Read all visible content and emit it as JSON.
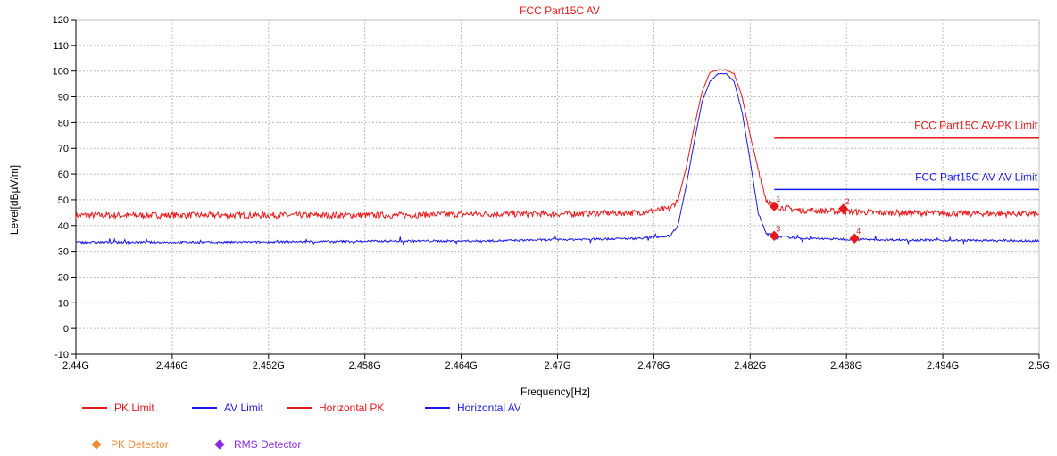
{
  "chart_data": {
    "type": "line",
    "title": "FCC Part15C AV",
    "xlabel": "Frequency[Hz]",
    "ylabel": "Level[dBµV/m]",
    "xlim": [
      2.44,
      2.5
    ],
    "ylim": [
      -10,
      120
    ],
    "x_ticks": [
      {
        "value": 2.44,
        "label": "2.44G"
      },
      {
        "value": 2.446,
        "label": "2.446G"
      },
      {
        "value": 2.452,
        "label": "2.452G"
      },
      {
        "value": 2.458,
        "label": "2.458G"
      },
      {
        "value": 2.464,
        "label": "2.464G"
      },
      {
        "value": 2.47,
        "label": "2.47G"
      },
      {
        "value": 2.476,
        "label": "2.476G"
      },
      {
        "value": 2.482,
        "label": "2.482G"
      },
      {
        "value": 2.488,
        "label": "2.488G"
      },
      {
        "value": 2.494,
        "label": "2.494G"
      },
      {
        "value": 2.5,
        "label": "2.5G"
      }
    ],
    "y_ticks": [
      -10,
      0,
      10,
      20,
      30,
      40,
      50,
      60,
      70,
      80,
      90,
      100,
      110,
      120
    ],
    "grid": true,
    "series": [
      {
        "name": "PK Limit",
        "color": "#e8191b",
        "x": [
          2.4835,
          2.5
        ],
        "y": [
          74,
          74
        ]
      },
      {
        "name": "AV Limit",
        "color": "#1a1aee",
        "x": [
          2.4835,
          2.5
        ],
        "y": [
          54,
          54
        ]
      },
      {
        "name": "Horizontal PK",
        "color": "#e8191b",
        "x": [
          2.44,
          2.45,
          2.46,
          2.465,
          2.47,
          2.475,
          2.477,
          2.4775,
          2.478,
          2.4785,
          2.479,
          2.4795,
          2.48,
          2.4805,
          2.481,
          2.4815,
          2.482,
          2.4825,
          2.483,
          2.4835,
          2.485,
          2.49,
          2.5
        ],
        "y": [
          44,
          44,
          44,
          44.5,
          44.5,
          45,
          46.5,
          50,
          62,
          78,
          92,
          99.5,
          100.5,
          100.5,
          99,
          90,
          75,
          62,
          50,
          47.5,
          46,
          45,
          44.5
        ]
      },
      {
        "name": "Horizontal AV",
        "color": "#1a1aee",
        "x": [
          2.44,
          2.45,
          2.46,
          2.465,
          2.47,
          2.475,
          2.477,
          2.4775,
          2.478,
          2.4785,
          2.479,
          2.4795,
          2.48,
          2.4805,
          2.481,
          2.4815,
          2.482,
          2.4825,
          2.483,
          2.4835,
          2.485,
          2.49,
          2.5
        ],
        "y": [
          33.5,
          33.5,
          34,
          34,
          34.5,
          35,
          36,
          40,
          55,
          72,
          88,
          96,
          99,
          99,
          96,
          84,
          65,
          45,
          37,
          36,
          35,
          34.5,
          34
        ]
      }
    ],
    "markers": [
      {
        "label": "1",
        "x": 2.4835,
        "y": 47.5,
        "color": "#e8191b"
      },
      {
        "label": "2",
        "x": 2.4878,
        "y": 46.5,
        "color": "#e8191b"
      },
      {
        "label": "3",
        "x": 2.4835,
        "y": 36,
        "color": "#e8191b"
      },
      {
        "label": "4",
        "x": 2.4885,
        "y": 35,
        "color": "#e8191b"
      }
    ],
    "limit_labels": [
      {
        "text": "FCC Part15C AV-PK Limit",
        "color": "#e8191b",
        "y": 74
      },
      {
        "text": "FCC Part15C AV-AV Limit",
        "color": "#1a1aee",
        "y": 54
      }
    ]
  },
  "legend": {
    "lines": [
      {
        "label": "PK Limit",
        "color": "#e8191b"
      },
      {
        "label": "AV Limit",
        "color": "#1a1aee"
      },
      {
        "label": "Horizontal PK",
        "color": "#e8191b"
      },
      {
        "label": "Horizontal AV",
        "color": "#1a1aee"
      }
    ],
    "detectors": [
      {
        "label": "PK Detector",
        "color": "#f28a3a"
      },
      {
        "label": "RMS Detector",
        "color": "#8a2be2"
      }
    ]
  }
}
